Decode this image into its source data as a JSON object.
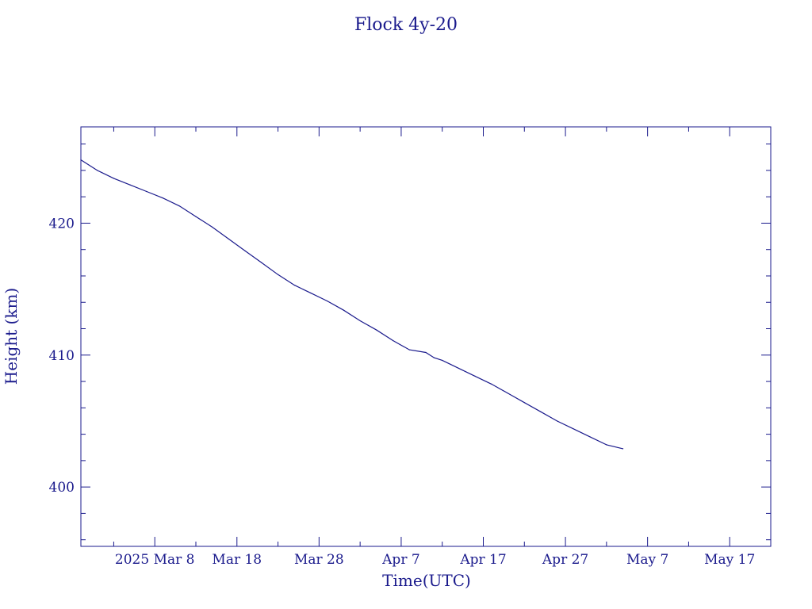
{
  "chart_data": {
    "type": "line",
    "title": "Flock 4y-20",
    "xlabel": "Time(UTC)",
    "ylabel": "Height (km)",
    "x_tick_labels": [
      "2025 Mar  8",
      "Mar 18",
      "Mar 28",
      "Apr  7",
      "Apr 17",
      "Apr 27",
      "May  7",
      "May 17"
    ],
    "x_tick_dates": [
      "2025-03-08",
      "2025-03-18",
      "2025-03-28",
      "2025-04-07",
      "2025-04-17",
      "2025-04-27",
      "2025-05-07",
      "2025-05-17"
    ],
    "xlim": [
      "2025-02-27",
      "2025-05-22"
    ],
    "y_tick_labels": [
      "400",
      "410",
      "420"
    ],
    "y_ticks": [
      400,
      410,
      420
    ],
    "ylim": [
      395.5,
      427.3
    ],
    "grid": false,
    "series": [
      {
        "x": [
          "2025-02-27",
          "2025-03-01",
          "2025-03-03",
          "2025-03-05",
          "2025-03-07",
          "2025-03-09",
          "2025-03-11",
          "2025-03-13",
          "2025-03-15",
          "2025-03-17",
          "2025-03-19",
          "2025-03-21",
          "2025-03-23",
          "2025-03-25",
          "2025-03-27",
          "2025-03-29",
          "2025-03-31",
          "2025-04-02",
          "2025-04-04",
          "2025-04-06",
          "2025-04-08",
          "2025-04-10",
          "2025-04-11",
          "2025-04-12",
          "2025-04-13",
          "2025-04-14",
          "2025-04-16",
          "2025-04-18",
          "2025-04-20",
          "2025-04-22",
          "2025-04-24",
          "2025-04-26",
          "2025-04-28",
          "2025-04-30",
          "2025-05-02",
          "2025-05-04"
        ],
        "y": [
          424.8,
          424.0,
          423.4,
          422.9,
          422.4,
          421.9,
          421.3,
          420.5,
          419.7,
          418.8,
          417.9,
          417.0,
          416.1,
          415.3,
          414.7,
          414.1,
          413.4,
          412.6,
          411.9,
          411.1,
          410.4,
          410.2,
          409.8,
          409.6,
          409.3,
          409.0,
          408.4,
          407.8,
          407.1,
          406.4,
          405.7,
          405.0,
          404.4,
          403.8,
          403.2,
          402.9
        ]
      }
    ]
  }
}
